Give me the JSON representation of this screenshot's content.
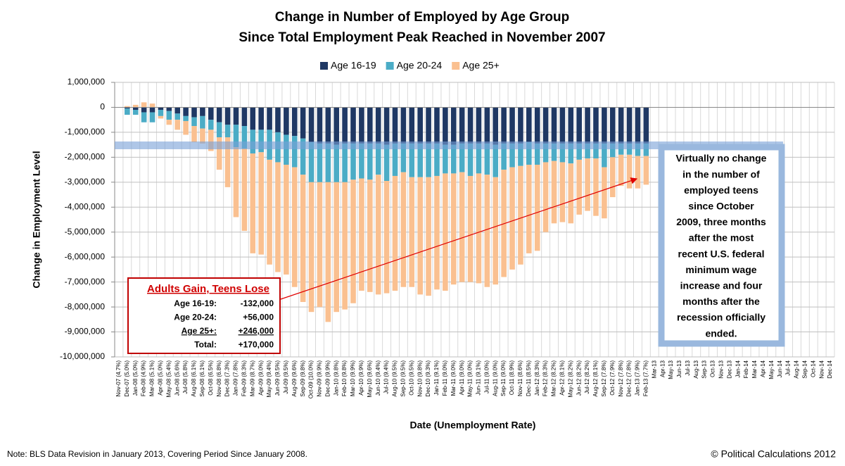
{
  "chart_data": {
    "type": "bar",
    "stacked": true,
    "title": [
      "Change in Number of Employed by Age Group",
      "Since Total Employment Peak Reached in November 2007"
    ],
    "y_label": "Change in Employment Level",
    "x_label": "Date (Unemployment Rate)",
    "categories": [
      "Nov-07 (4.7%)",
      "Dec-07 (5.0%)",
      "Jan-08 (5.0%)",
      "Feb-08 (4.9%)",
      "Mar-08 (5.1%)",
      "Apr-08 (5.0%)",
      "May-08 (5.4%)",
      "Jun-08 (5.6%)",
      "Jul-08 (5.8%)",
      "Aug-08 (6.1%)",
      "Sep-08 (6.1%)",
      "Oct-08 (6.5%)",
      "Nov-08 (6.8%)",
      "Dec-08 (7.3%)",
      "Jan-09 (7.8%)",
      "Feb-09 (8.3%)",
      "Mar-09 (8.7%)",
      "Apr-09 (9.0%)",
      "May-09 (9.4%)",
      "Jun-09 (9.5%)",
      "Jul-09 (9.5%)",
      "Aug-09 (9.6%)",
      "Sep-09 (9.8%)",
      "Oct-09 (10.0%)",
      "Nov-09 (9.9%)",
      "Dec-09 (9.9%)",
      "Jan-10 (9.8%)",
      "Feb-10 (9.8%)",
      "Mar-10 (9.9%)",
      "Apr-10 (9.9%)",
      "May-10 (9.6%)",
      "Jun-10 (9.4%)",
      "Jul-10 (9.4%)",
      "Aug-10 (9.5%)",
      "Sep-10 (9.5%)",
      "Oct-10 (9.5%)",
      "Nov-10 (9.8%)",
      "Dec-10 (9.3%)",
      "Jan-11 (9.1%)",
      "Feb-11 (9.0%)",
      "Mar-11 (9.0%)",
      "Apr-11 (9.0%)",
      "May-11 (9.0%)",
      "Jun-11 (9.1%)",
      "Jul-11 (9.0%)",
      "Aug-11 (9.0%)",
      "Sep-11 (9.0%)",
      "Oct-11 (8.9%)",
      "Nov-11 (8.6%)",
      "Dec-11 (8.5%)",
      "Jan-12 (8.3%)",
      "Feb-12 (8.3%)",
      "Mar-12 (8.2%)",
      "Apr-12 (8.1%)",
      "May-12 (8.2%)",
      "Jun-12 (8.2%)",
      "Jul-12 (8.2%)",
      "Aug-12 (8.1%)",
      "Sep-12 (7.8%)",
      "Oct-12 (7.9%)",
      "Nov-12 (7.8%)",
      "Dec-12 (7.8%)",
      "Jan-13 (7.9%)",
      "Feb-13 (7.7%)",
      "Mar-13",
      "Apr-13",
      "May-13",
      "Jun-13",
      "Jul-13",
      "Aug-13",
      "Sep-13",
      "Oct-13",
      "Nov-13",
      "Dec-13",
      "Jan-14",
      "Feb-14",
      "Mar-14",
      "Apr-14",
      "May-14",
      "Jun-14",
      "Jul-14",
      "Aug-14",
      "Sep-14",
      "Oct-14",
      "Nov-14",
      "Dec-14"
    ],
    "series": [
      {
        "name": "Age 16-19",
        "color": "#1f3864",
        "values": [
          0,
          -50000,
          -100000,
          -200000,
          -200000,
          -100000,
          -150000,
          -250000,
          -350000,
          -400000,
          -350000,
          -500000,
          -600000,
          -700000,
          -700000,
          -750000,
          -900000,
          -900000,
          -900000,
          -1000000,
          -1100000,
          -1150000,
          -1250000,
          -1400000,
          -1450000,
          -1450000,
          -1500000,
          -1450000,
          -1450000,
          -1450000,
          -1450000,
          -1450000,
          -1500000,
          -1450000,
          -1450000,
          -1450000,
          -1450000,
          -1450000,
          -1450000,
          -1500000,
          -1500000,
          -1450000,
          -1450000,
          -1450000,
          -1450000,
          -1500000,
          -1450000,
          -1450000,
          -1450000,
          -1400000,
          -1450000,
          -1450000,
          -1450000,
          -1450000,
          -1450000,
          -1450000,
          -1450000,
          -1450000,
          -1450000,
          -1450000,
          -1450000,
          -1450000,
          -1450000,
          -1450000,
          null,
          null,
          null,
          null,
          null,
          null,
          null,
          null,
          null,
          null,
          null,
          null,
          null,
          null,
          null,
          null,
          null,
          null,
          null,
          null,
          null,
          null
        ]
      },
      {
        "name": "Age 20-24",
        "color": "#4bacc6",
        "values": [
          0,
          -250000,
          -200000,
          -400000,
          -400000,
          -250000,
          -350000,
          -250000,
          -200000,
          -350000,
          -500000,
          -400000,
          -600000,
          -500000,
          -900000,
          -900000,
          -950000,
          -900000,
          -1200000,
          -1200000,
          -1200000,
          -1250000,
          -1450000,
          -1600000,
          -1550000,
          -1550000,
          -1500000,
          -1550000,
          -1450000,
          -1400000,
          -1450000,
          -1250000,
          -1450000,
          -1300000,
          -1150000,
          -1350000,
          -1350000,
          -1350000,
          -1300000,
          -1150000,
          -1150000,
          -1150000,
          -1300000,
          -1200000,
          -1250000,
          -1300000,
          -1050000,
          -950000,
          -900000,
          -900000,
          -850000,
          -750000,
          -700000,
          -750000,
          -800000,
          -650000,
          -600000,
          -600000,
          -950000,
          -550000,
          -450000,
          -450000,
          -500000,
          -500000,
          null,
          null,
          null,
          null,
          null,
          null,
          null,
          null,
          null,
          null,
          null,
          null,
          null,
          null,
          null,
          null,
          null,
          null,
          null,
          null,
          null,
          null
        ]
      },
      {
        "name": "Age 25+",
        "color": "#fac090",
        "values": [
          0,
          50000,
          100000,
          200000,
          150000,
          -100000,
          -200000,
          -400000,
          -550000,
          -650000,
          -600000,
          -850000,
          -1300000,
          -2000000,
          -2800000,
          -3300000,
          -4000000,
          -4100000,
          -4200000,
          -4400000,
          -4400000,
          -4800000,
          -5100000,
          -5200000,
          -5000000,
          -5600000,
          -5200000,
          -5100000,
          -4950000,
          -4500000,
          -4500000,
          -4800000,
          -4500000,
          -4600000,
          -4600000,
          -4400000,
          -4700000,
          -4750000,
          -4550000,
          -4700000,
          -4450000,
          -4400000,
          -4250000,
          -4400000,
          -4500000,
          -4300000,
          -4300000,
          -4100000,
          -3950000,
          -3550000,
          -3450000,
          -2800000,
          -2500000,
          -2400000,
          -2400000,
          -2200000,
          -2100000,
          -2300000,
          -2050000,
          -1600000,
          -1250000,
          -1350000,
          -1300000,
          -1150000,
          null,
          null,
          null,
          null,
          null,
          null,
          null,
          null,
          null,
          null,
          null,
          null,
          null,
          null,
          null,
          null,
          null,
          null,
          null,
          null,
          null,
          null
        ]
      }
    ],
    "ylim": [
      -10000000,
      1000000
    ],
    "yticks": [
      {
        "value": -10000000,
        "label": "-10,000,000"
      },
      {
        "value": -9000000,
        "label": "-9,000,000"
      },
      {
        "value": -8000000,
        "label": "-8,000,000"
      },
      {
        "value": -7000000,
        "label": "-7,000,000"
      },
      {
        "value": -6000000,
        "label": "-6,000,000"
      },
      {
        "value": -5000000,
        "label": "-5,000,000"
      },
      {
        "value": -4000000,
        "label": "-4,000,000"
      },
      {
        "value": -3000000,
        "label": "-3,000,000"
      },
      {
        "value": -2000000,
        "label": "-2,000,000"
      },
      {
        "value": -1000000,
        "label": "-1,000,000"
      },
      0,
      {
        "value": 1000000,
        "label": "1,000,000"
      }
    ],
    "grid": true,
    "legend": "top",
    "annotations": {
      "left_box": {
        "title": "Adults Gain, Teens Lose",
        "rows": [
          [
            "Age 16-19:",
            "-132,000"
          ],
          [
            "Age 20-24:",
            "+56,000"
          ],
          [
            "Age 25+:",
            "+246,000"
          ],
          [
            "Total:",
            "+170,000"
          ]
        ]
      },
      "right_box": {
        "lines": [
          "Virtually no change",
          "in the number of",
          "employed teens",
          "since October",
          "2009, three months",
          "after the most",
          "recent U.S. federal",
          "minimum wage",
          "increase and four",
          "months after the",
          "recession officially",
          "ended."
        ]
      }
    },
    "note": "Note: BLS Data Revision in January 2013, Covering Period Since January 2008.",
    "credit": "© Political Calculations 2012"
  }
}
